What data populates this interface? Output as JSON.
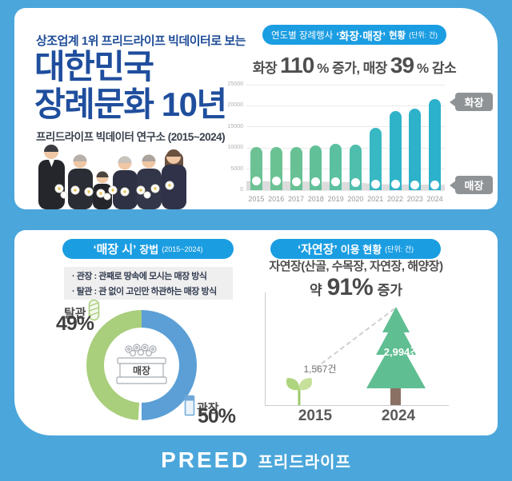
{
  "colors": {
    "page_bg": "#4BA7DB",
    "pill_blue": "#1B9DE2",
    "title_navy": "#1F4E9D",
    "tag_gray": "#8F9396",
    "donut_green": "#A9CE7C",
    "donut_blue": "#5B9FD6",
    "tree_green": "#5FBE92",
    "sprout_green": "#AFD47E"
  },
  "header": {
    "kicker": "상조업계 1위 프리드라이프 빅데이터로 보는",
    "title_line1": "대한민국",
    "title_line2": "장례문화 10년",
    "subtitle": "프리드라이프 빅데이터 연구소 (2015~2024)"
  },
  "cremation": {
    "pill": {
      "base": "연도별 장례행사",
      "emph": "‘화장·매장’",
      "post": "현황",
      "unit": "(단위: 건)"
    },
    "stat": {
      "w1": "화장",
      "n1": "110",
      "s1": "% 증가,",
      "w2": "매장",
      "n2": "39",
      "s2": "% 감소"
    },
    "tags": {
      "cremation": "화장",
      "burial": "매장"
    }
  },
  "burial": {
    "pill": {
      "emph": "‘매장 시’",
      "post": "장법",
      "unit": "(2015~2024)"
    },
    "bullets": [
      "·  관장 : 관째로 땅속에 모시는 매장 방식",
      "·  탈관 : 관 없이 고인만 하관하는 매장 방식"
    ],
    "donut_labels": {
      "left_name": "탈관",
      "left_pct": "49%",
      "right_name": "관장",
      "right_pct": "50%",
      "center": "매장"
    }
  },
  "natural": {
    "pill": {
      "emph": "‘자연장’",
      "post": "이용 현황",
      "unit": "(단위: 건)"
    },
    "desc": "자연장(산골, 수목장, 자연장, 해양장)",
    "stat": {
      "pre": "약",
      "num": "91%",
      "post": "증가"
    },
    "start": {
      "label": "1,567건",
      "year": "2015"
    },
    "end": {
      "label": "2,994건",
      "year": "2024"
    }
  },
  "footer": {
    "logo_en": "PREED",
    "logo_kr": "프리드라이프"
  },
  "chart_data": [
    {
      "id": "cremation-vs-burial",
      "type": "bar",
      "title": "연도별 장례행사 ‘화장·매장’ 현황 (단위: 건)",
      "categories": [
        "2015",
        "2016",
        "2017",
        "2018",
        "2019",
        "2020",
        "2021",
        "2022",
        "2023",
        "2024"
      ],
      "series": [
        {
          "name": "화장",
          "type": "bar",
          "values": [
            10300,
            10150,
            10200,
            10650,
            11050,
            10800,
            14700,
            18800,
            19400,
            21650
          ],
          "colors": [
            "#6CC295",
            "#6AC293",
            "#67C194",
            "#62C098",
            "#5AC0A0",
            "#4FBEAC",
            "#38B8C2",
            "#2FB3C8",
            "#2DB2C9",
            "#2BB1CB"
          ]
        },
        {
          "name": "매장",
          "type": "area",
          "values": [
            2150,
            2100,
            2050,
            2000,
            1950,
            1900,
            1400,
            1360,
            1320,
            1310
          ],
          "color": "#DCDCDC"
        }
      ],
      "ylim": [
        0,
        25000
      ],
      "yticks": [
        0,
        5000,
        10000,
        15000,
        20000,
        25000
      ],
      "grid": true,
      "legend_position": "right-tags",
      "annotations": [
        "화장 110% 증가",
        "매장 39% 감소"
      ]
    },
    {
      "id": "burial-method-share",
      "type": "pie",
      "title": "‘매장 시’ 장법 (2015~2024)",
      "slices": [
        {
          "label": "관장",
          "value": 50,
          "color": "#5B9FD6"
        },
        {
          "label": "탈관",
          "value": 49,
          "color": "#A9CE7C"
        }
      ],
      "center_label": "매장",
      "donut": true
    },
    {
      "id": "natural-burial-growth",
      "type": "pictorial",
      "title": "‘자연장’ 이용 현황 (단위: 건)",
      "points": [
        {
          "x": "2015",
          "value": 1567,
          "label": "1,567건"
        },
        {
          "x": "2024",
          "value": 2994,
          "label": "2,994건"
        }
      ],
      "growth": "약 91% 증가"
    }
  ]
}
